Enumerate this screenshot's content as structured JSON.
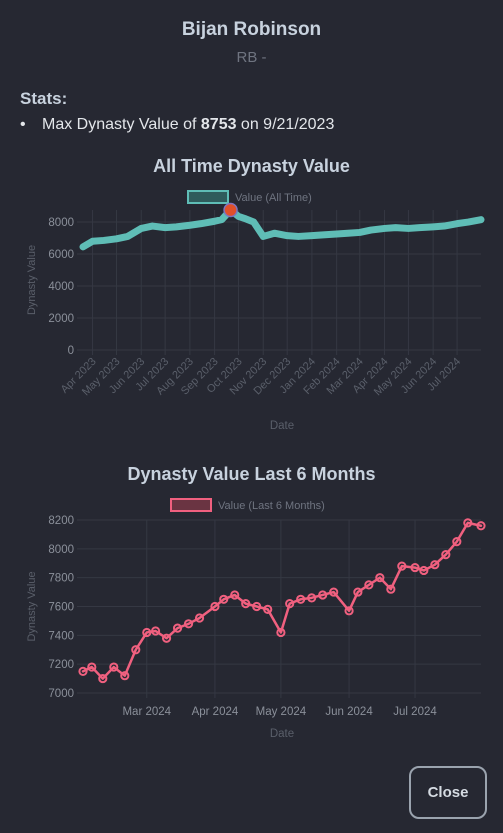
{
  "header": {
    "player_name": "Bijan Robinson",
    "position_line": "RB -"
  },
  "stats": {
    "title": "Stats:",
    "items": [
      {
        "prefix": "Max Dynasty Value of ",
        "value": "8753",
        "suffix": " on 9/21/2023"
      }
    ]
  },
  "footer": {
    "close_label": "Close"
  },
  "colors": {
    "background": "#262832",
    "teal_series": "#5fbdb6",
    "pink_series": "#f0607f",
    "max_marker": "#e0502a",
    "grid": "#3a3d47"
  },
  "chart_data": [
    {
      "type": "line",
      "title": "All Time Dynasty Value",
      "xlabel": "Date",
      "ylabel": "Dynasty Value",
      "ylim": [
        0,
        8753
      ],
      "yticks": [
        0,
        2000,
        4000,
        6000,
        8000
      ],
      "xtick_labels": [
        "Apr 2023",
        "May 2023",
        "Jun 2023",
        "Jul 2023",
        "Aug 2023",
        "Sep 2023",
        "Oct 2023",
        "Nov 2023",
        "Dec 2023",
        "Jan 2024",
        "Feb 2024",
        "Mar 2024",
        "Apr 2024",
        "May 2024",
        "Jun 2024",
        "Jul 2024"
      ],
      "xlim": [
        "2023-03-20",
        "2024-07-31"
      ],
      "grid": true,
      "legend": {
        "position": "top",
        "entries": [
          "Value (All Time)"
        ]
      },
      "highlight": {
        "x": "2023-09-21",
        "y": 8753
      },
      "series": [
        {
          "name": "Value (All Time)",
          "color": "#5fbdb6",
          "x": [
            "2023-03-20",
            "2023-04-01",
            "2023-04-15",
            "2023-05-01",
            "2023-05-15",
            "2023-06-01",
            "2023-06-15",
            "2023-07-01",
            "2023-07-15",
            "2023-08-01",
            "2023-08-15",
            "2023-09-01",
            "2023-09-10",
            "2023-09-21",
            "2023-10-01",
            "2023-10-10",
            "2023-10-20",
            "2023-11-01",
            "2023-11-15",
            "2023-12-01",
            "2023-12-15",
            "2024-01-01",
            "2024-01-15",
            "2024-02-01",
            "2024-02-15",
            "2024-03-01",
            "2024-03-15",
            "2024-04-01",
            "2024-04-15",
            "2024-05-01",
            "2024-05-15",
            "2024-06-01",
            "2024-06-15",
            "2024-07-01",
            "2024-07-15",
            "2024-07-31"
          ],
          "y": [
            6450,
            6800,
            6850,
            6950,
            7100,
            7600,
            7750,
            7650,
            7700,
            7800,
            7900,
            8050,
            8150,
            8753,
            8350,
            8200,
            8000,
            7100,
            7300,
            7150,
            7100,
            7150,
            7200,
            7250,
            7300,
            7350,
            7500,
            7600,
            7650,
            7600,
            7650,
            7700,
            7750,
            7900,
            8000,
            8150
          ]
        }
      ]
    },
    {
      "type": "line",
      "title": "Dynasty Value Last 6 Months",
      "xlabel": "Date",
      "ylabel": "Dynasty Value",
      "ylim": [
        7000,
        8200
      ],
      "yticks": [
        7000,
        7200,
        7400,
        7600,
        7800,
        8000,
        8200
      ],
      "xtick_labels": [
        "Mar 2024",
        "Apr 2024",
        "May 2024",
        "Jun 2024",
        "Jul 2024"
      ],
      "xlim": [
        "2024-02-01",
        "2024-07-31"
      ],
      "grid": true,
      "legend": {
        "position": "top",
        "entries": [
          "Value (Last 6 Months)"
        ]
      },
      "series": [
        {
          "name": "Value (Last 6 Months)",
          "color": "#f0607f",
          "x": [
            "2024-02-01",
            "2024-02-05",
            "2024-02-10",
            "2024-02-15",
            "2024-02-20",
            "2024-02-25",
            "2024-03-01",
            "2024-03-05",
            "2024-03-10",
            "2024-03-15",
            "2024-03-20",
            "2024-03-25",
            "2024-04-01",
            "2024-04-05",
            "2024-04-10",
            "2024-04-15",
            "2024-04-20",
            "2024-04-25",
            "2024-05-01",
            "2024-05-05",
            "2024-05-10",
            "2024-05-15",
            "2024-05-20",
            "2024-05-25",
            "2024-06-01",
            "2024-06-05",
            "2024-06-10",
            "2024-06-15",
            "2024-06-20",
            "2024-06-25",
            "2024-07-01",
            "2024-07-05",
            "2024-07-10",
            "2024-07-15",
            "2024-07-20",
            "2024-07-25",
            "2024-07-31"
          ],
          "y": [
            7150,
            7180,
            7100,
            7180,
            7120,
            7300,
            7420,
            7430,
            7380,
            7450,
            7480,
            7520,
            7600,
            7650,
            7680,
            7620,
            7600,
            7580,
            7420,
            7620,
            7650,
            7660,
            7680,
            7700,
            7570,
            7700,
            7750,
            7800,
            7720,
            7880,
            7870,
            7850,
            7890,
            7960,
            8050,
            8180,
            8160
          ]
        }
      ]
    }
  ]
}
